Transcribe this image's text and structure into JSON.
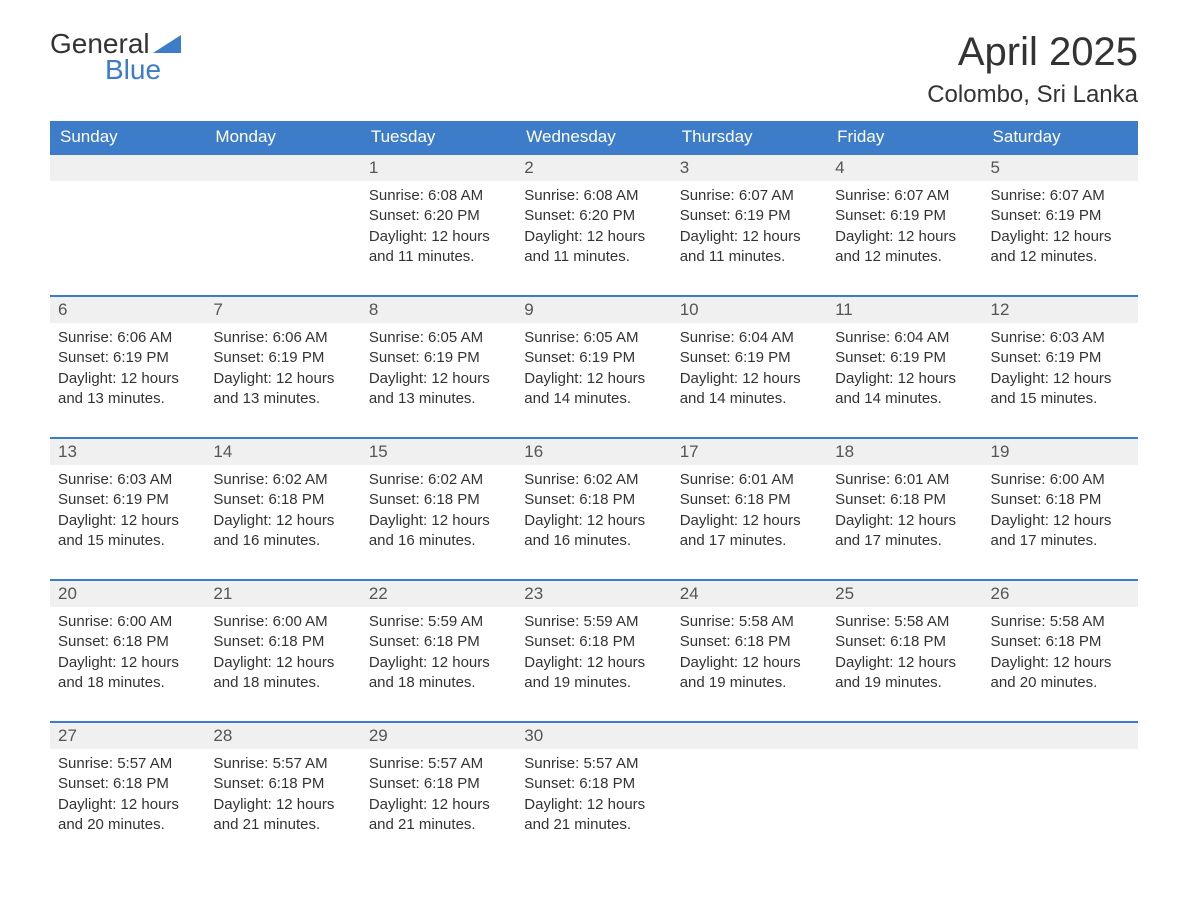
{
  "logo": {
    "word1": "General",
    "word2": "Blue",
    "color_general": "#333333",
    "color_blue": "#3d7cc9"
  },
  "title": "April 2025",
  "location": "Colombo, Sri Lanka",
  "header_bg": "#3d7cc9",
  "header_fg": "#ffffff",
  "daynum_bg": "#f0f0f0",
  "border_color": "#3d7cc9",
  "day_headers": [
    "Sunday",
    "Monday",
    "Tuesday",
    "Wednesday",
    "Thursday",
    "Friday",
    "Saturday"
  ],
  "weeks": [
    [
      null,
      null,
      {
        "num": "1",
        "sunrise": "Sunrise: 6:08 AM",
        "sunset": "Sunset: 6:20 PM",
        "daylight1": "Daylight: 12 hours",
        "daylight2": "and 11 minutes."
      },
      {
        "num": "2",
        "sunrise": "Sunrise: 6:08 AM",
        "sunset": "Sunset: 6:20 PM",
        "daylight1": "Daylight: 12 hours",
        "daylight2": "and 11 minutes."
      },
      {
        "num": "3",
        "sunrise": "Sunrise: 6:07 AM",
        "sunset": "Sunset: 6:19 PM",
        "daylight1": "Daylight: 12 hours",
        "daylight2": "and 11 minutes."
      },
      {
        "num": "4",
        "sunrise": "Sunrise: 6:07 AM",
        "sunset": "Sunset: 6:19 PM",
        "daylight1": "Daylight: 12 hours",
        "daylight2": "and 12 minutes."
      },
      {
        "num": "5",
        "sunrise": "Sunrise: 6:07 AM",
        "sunset": "Sunset: 6:19 PM",
        "daylight1": "Daylight: 12 hours",
        "daylight2": "and 12 minutes."
      }
    ],
    [
      {
        "num": "6",
        "sunrise": "Sunrise: 6:06 AM",
        "sunset": "Sunset: 6:19 PM",
        "daylight1": "Daylight: 12 hours",
        "daylight2": "and 13 minutes."
      },
      {
        "num": "7",
        "sunrise": "Sunrise: 6:06 AM",
        "sunset": "Sunset: 6:19 PM",
        "daylight1": "Daylight: 12 hours",
        "daylight2": "and 13 minutes."
      },
      {
        "num": "8",
        "sunrise": "Sunrise: 6:05 AM",
        "sunset": "Sunset: 6:19 PM",
        "daylight1": "Daylight: 12 hours",
        "daylight2": "and 13 minutes."
      },
      {
        "num": "9",
        "sunrise": "Sunrise: 6:05 AM",
        "sunset": "Sunset: 6:19 PM",
        "daylight1": "Daylight: 12 hours",
        "daylight2": "and 14 minutes."
      },
      {
        "num": "10",
        "sunrise": "Sunrise: 6:04 AM",
        "sunset": "Sunset: 6:19 PM",
        "daylight1": "Daylight: 12 hours",
        "daylight2": "and 14 minutes."
      },
      {
        "num": "11",
        "sunrise": "Sunrise: 6:04 AM",
        "sunset": "Sunset: 6:19 PM",
        "daylight1": "Daylight: 12 hours",
        "daylight2": "and 14 minutes."
      },
      {
        "num": "12",
        "sunrise": "Sunrise: 6:03 AM",
        "sunset": "Sunset: 6:19 PM",
        "daylight1": "Daylight: 12 hours",
        "daylight2": "and 15 minutes."
      }
    ],
    [
      {
        "num": "13",
        "sunrise": "Sunrise: 6:03 AM",
        "sunset": "Sunset: 6:19 PM",
        "daylight1": "Daylight: 12 hours",
        "daylight2": "and 15 minutes."
      },
      {
        "num": "14",
        "sunrise": "Sunrise: 6:02 AM",
        "sunset": "Sunset: 6:18 PM",
        "daylight1": "Daylight: 12 hours",
        "daylight2": "and 16 minutes."
      },
      {
        "num": "15",
        "sunrise": "Sunrise: 6:02 AM",
        "sunset": "Sunset: 6:18 PM",
        "daylight1": "Daylight: 12 hours",
        "daylight2": "and 16 minutes."
      },
      {
        "num": "16",
        "sunrise": "Sunrise: 6:02 AM",
        "sunset": "Sunset: 6:18 PM",
        "daylight1": "Daylight: 12 hours",
        "daylight2": "and 16 minutes."
      },
      {
        "num": "17",
        "sunrise": "Sunrise: 6:01 AM",
        "sunset": "Sunset: 6:18 PM",
        "daylight1": "Daylight: 12 hours",
        "daylight2": "and 17 minutes."
      },
      {
        "num": "18",
        "sunrise": "Sunrise: 6:01 AM",
        "sunset": "Sunset: 6:18 PM",
        "daylight1": "Daylight: 12 hours",
        "daylight2": "and 17 minutes."
      },
      {
        "num": "19",
        "sunrise": "Sunrise: 6:00 AM",
        "sunset": "Sunset: 6:18 PM",
        "daylight1": "Daylight: 12 hours",
        "daylight2": "and 17 minutes."
      }
    ],
    [
      {
        "num": "20",
        "sunrise": "Sunrise: 6:00 AM",
        "sunset": "Sunset: 6:18 PM",
        "daylight1": "Daylight: 12 hours",
        "daylight2": "and 18 minutes."
      },
      {
        "num": "21",
        "sunrise": "Sunrise: 6:00 AM",
        "sunset": "Sunset: 6:18 PM",
        "daylight1": "Daylight: 12 hours",
        "daylight2": "and 18 minutes."
      },
      {
        "num": "22",
        "sunrise": "Sunrise: 5:59 AM",
        "sunset": "Sunset: 6:18 PM",
        "daylight1": "Daylight: 12 hours",
        "daylight2": "and 18 minutes."
      },
      {
        "num": "23",
        "sunrise": "Sunrise: 5:59 AM",
        "sunset": "Sunset: 6:18 PM",
        "daylight1": "Daylight: 12 hours",
        "daylight2": "and 19 minutes."
      },
      {
        "num": "24",
        "sunrise": "Sunrise: 5:58 AM",
        "sunset": "Sunset: 6:18 PM",
        "daylight1": "Daylight: 12 hours",
        "daylight2": "and 19 minutes."
      },
      {
        "num": "25",
        "sunrise": "Sunrise: 5:58 AM",
        "sunset": "Sunset: 6:18 PM",
        "daylight1": "Daylight: 12 hours",
        "daylight2": "and 19 minutes."
      },
      {
        "num": "26",
        "sunrise": "Sunrise: 5:58 AM",
        "sunset": "Sunset: 6:18 PM",
        "daylight1": "Daylight: 12 hours",
        "daylight2": "and 20 minutes."
      }
    ],
    [
      {
        "num": "27",
        "sunrise": "Sunrise: 5:57 AM",
        "sunset": "Sunset: 6:18 PM",
        "daylight1": "Daylight: 12 hours",
        "daylight2": "and 20 minutes."
      },
      {
        "num": "28",
        "sunrise": "Sunrise: 5:57 AM",
        "sunset": "Sunset: 6:18 PM",
        "daylight1": "Daylight: 12 hours",
        "daylight2": "and 21 minutes."
      },
      {
        "num": "29",
        "sunrise": "Sunrise: 5:57 AM",
        "sunset": "Sunset: 6:18 PM",
        "daylight1": "Daylight: 12 hours",
        "daylight2": "and 21 minutes."
      },
      {
        "num": "30",
        "sunrise": "Sunrise: 5:57 AM",
        "sunset": "Sunset: 6:18 PM",
        "daylight1": "Daylight: 12 hours",
        "daylight2": "and 21 minutes."
      },
      null,
      null,
      null
    ]
  ]
}
